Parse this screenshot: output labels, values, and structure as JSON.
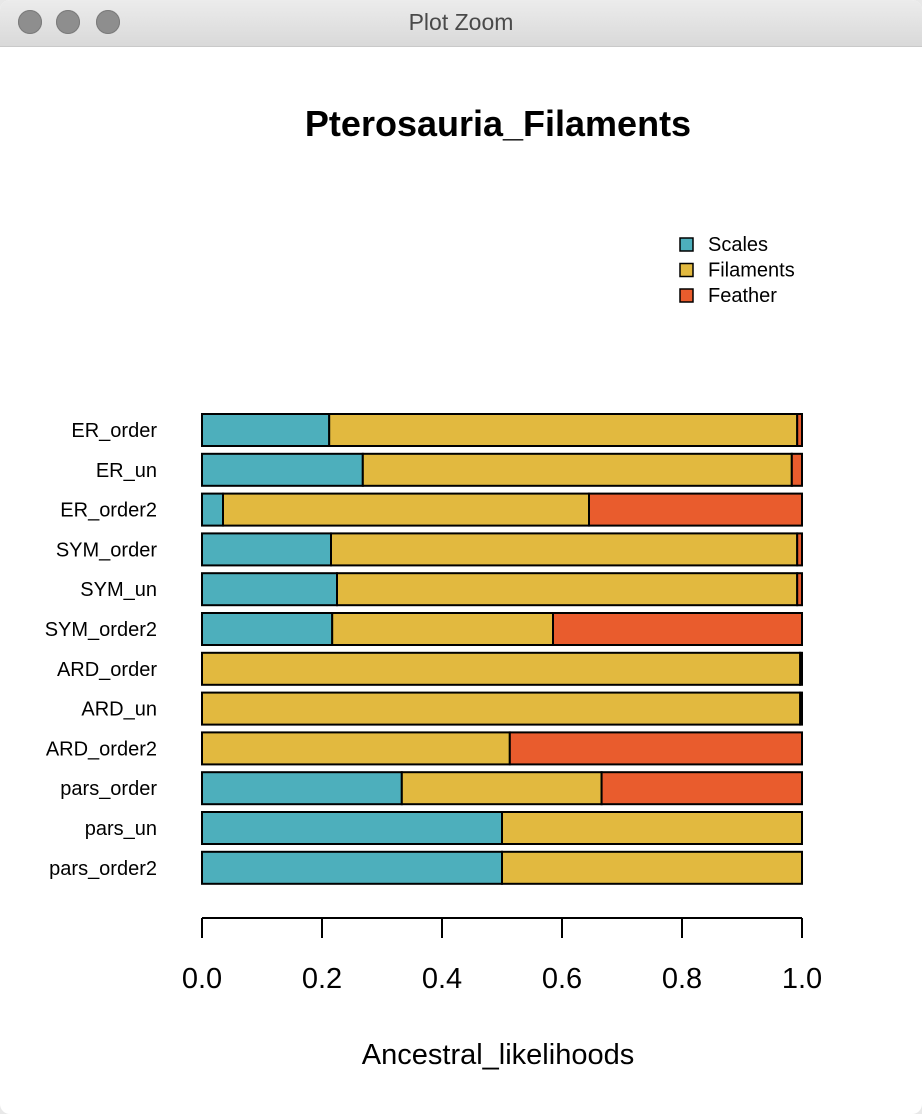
{
  "window": {
    "title": "Plot Zoom"
  },
  "chart_data": {
    "type": "bar",
    "orientation": "horizontal",
    "stacked": true,
    "title": "Pterosauria_Filaments",
    "xlabel": "Ancestral_likelihoods",
    "ylabel": "",
    "xlim": [
      0,
      1
    ],
    "xticks": [
      "0.0",
      "0.2",
      "0.4",
      "0.6",
      "0.8",
      "1.0"
    ],
    "legend_position": "top-right",
    "grid": false,
    "categories": [
      "ER_order",
      "ER_un",
      "ER_order2",
      "SYM_order",
      "SYM_un",
      "SYM_order2",
      "ARD_order",
      "ARD_un",
      "ARD_order2",
      "pars_order",
      "pars_un",
      "pars_order2"
    ],
    "series": [
      {
        "name": "Scales",
        "color": "#4DAFBC",
        "values": [
          0.212,
          0.268,
          0.035,
          0.215,
          0.225,
          0.217,
          0.0,
          0.0,
          0.0,
          0.333,
          0.5,
          0.5
        ]
      },
      {
        "name": "Filaments",
        "color": "#E2B93F",
        "values": [
          0.78,
          0.715,
          0.61,
          0.777,
          0.767,
          0.368,
          0.997,
          0.997,
          0.513,
          0.333,
          0.5,
          0.5
        ]
      },
      {
        "name": "Feather",
        "color": "#E95C2D",
        "values": [
          0.008,
          0.017,
          0.355,
          0.008,
          0.008,
          0.415,
          0.003,
          0.003,
          0.487,
          0.334,
          0.0,
          0.0
        ]
      }
    ]
  }
}
